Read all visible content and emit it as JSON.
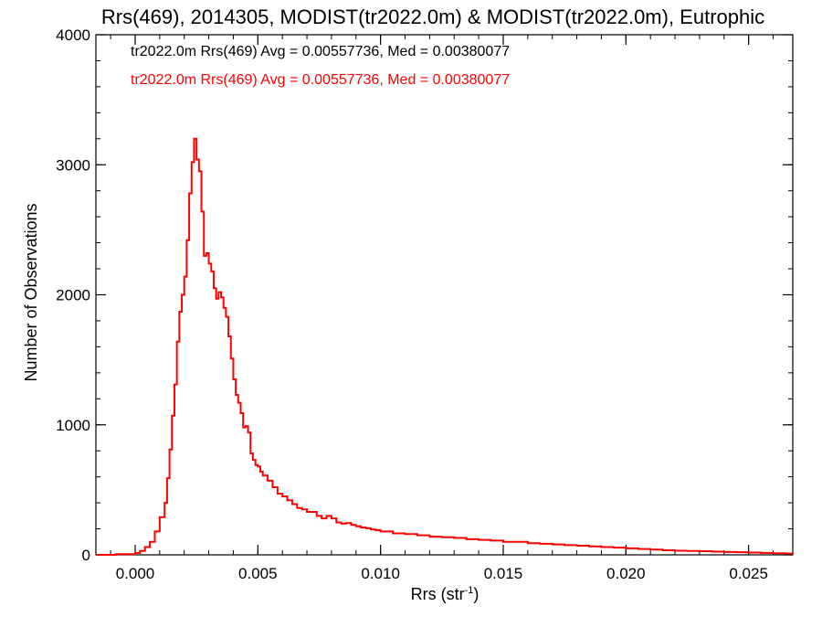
{
  "chart_data": {
    "type": "histogram",
    "title": "Rrs(469), 2014305, MODIST(tr2022.0m) & MODIST(tr2022.0m), Eutrophic",
    "xlabel": "Rrs (str",
    "xlabel_sup": "-1",
    "xlabel_close": ")",
    "ylabel": "Number of Observations",
    "xlim": [
      -0.0016,
      0.0268
    ],
    "ylim": [
      0,
      4000
    ],
    "x_ticks": [
      0.0,
      0.005,
      0.01,
      0.015,
      0.02,
      0.025
    ],
    "x_tick_labels": [
      "0.000",
      "0.005",
      "0.010",
      "0.015",
      "0.020",
      "0.025"
    ],
    "y_ticks": [
      0,
      1000,
      2000,
      3000,
      4000
    ],
    "y_tick_labels": [
      "0",
      "1000",
      "2000",
      "3000",
      "4000"
    ],
    "grid": false,
    "legend_position": "top-left",
    "annotations": [
      {
        "text": "tr2022.0m Rrs(469) Avg = 0.00557736, Med = 0.00380077",
        "color": "#000000"
      },
      {
        "text": "tr2022.0m Rrs(469) Avg = 0.00557736, Med = 0.00380077",
        "color": "#ff0000"
      }
    ],
    "series": [
      {
        "color": "#ff0000",
        "x": [
          -0.0016,
          -0.0008,
          -0.0004,
          0.0,
          0.0002,
          0.0004,
          0.0006,
          0.0008,
          0.001,
          0.0012,
          0.0013,
          0.0014,
          0.0015,
          0.0016,
          0.0017,
          0.0018,
          0.0019,
          0.002,
          0.0021,
          0.0022,
          0.0023,
          0.0024,
          0.0025,
          0.0026,
          0.0027,
          0.0028,
          0.0029,
          0.003,
          0.0031,
          0.0032,
          0.0033,
          0.0034,
          0.0035,
          0.0036,
          0.0037,
          0.0038,
          0.0039,
          0.004,
          0.0041,
          0.0042,
          0.0043,
          0.0044,
          0.0045,
          0.0046,
          0.0047,
          0.0048,
          0.0049,
          0.005,
          0.0051,
          0.0052,
          0.0054,
          0.0056,
          0.0058,
          0.006,
          0.0062,
          0.0064,
          0.0066,
          0.0068,
          0.007,
          0.0072,
          0.0074,
          0.0076,
          0.0078,
          0.008,
          0.0082,
          0.0084,
          0.0086,
          0.0088,
          0.009,
          0.0092,
          0.0094,
          0.0096,
          0.0098,
          0.01,
          0.0105,
          0.011,
          0.0115,
          0.012,
          0.0125,
          0.013,
          0.0135,
          0.014,
          0.0145,
          0.015,
          0.0155,
          0.016,
          0.0165,
          0.017,
          0.0175,
          0.018,
          0.0185,
          0.019,
          0.0195,
          0.02,
          0.0205,
          0.021,
          0.0215,
          0.022,
          0.0225,
          0.023,
          0.0235,
          0.024,
          0.0245,
          0.025,
          0.0255,
          0.026,
          0.0265,
          0.0268
        ],
        "values": [
          0,
          5,
          5,
          15,
          30,
          60,
          100,
          180,
          290,
          400,
          590,
          810,
          1070,
          1310,
          1640,
          1870,
          2000,
          2140,
          2420,
          2780,
          3020,
          3200,
          3040,
          2950,
          2640,
          2300,
          2320,
          2240,
          2180,
          2050,
          1970,
          2020,
          1980,
          1900,
          1830,
          1680,
          1510,
          1350,
          1230,
          1170,
          1090,
          980,
          990,
          940,
          780,
          730,
          690,
          680,
          640,
          610,
          570,
          520,
          470,
          450,
          420,
          390,
          360,
          350,
          330,
          330,
          300,
          280,
          300,
          280,
          250,
          240,
          245,
          230,
          220,
          210,
          205,
          195,
          190,
          180,
          165,
          160,
          150,
          140,
          135,
          130,
          120,
          115,
          110,
          100,
          100,
          90,
          85,
          80,
          75,
          70,
          65,
          60,
          55,
          50,
          45,
          40,
          35,
          32,
          30,
          28,
          25,
          22,
          20,
          18,
          15,
          12,
          10,
          8
        ]
      }
    ]
  }
}
